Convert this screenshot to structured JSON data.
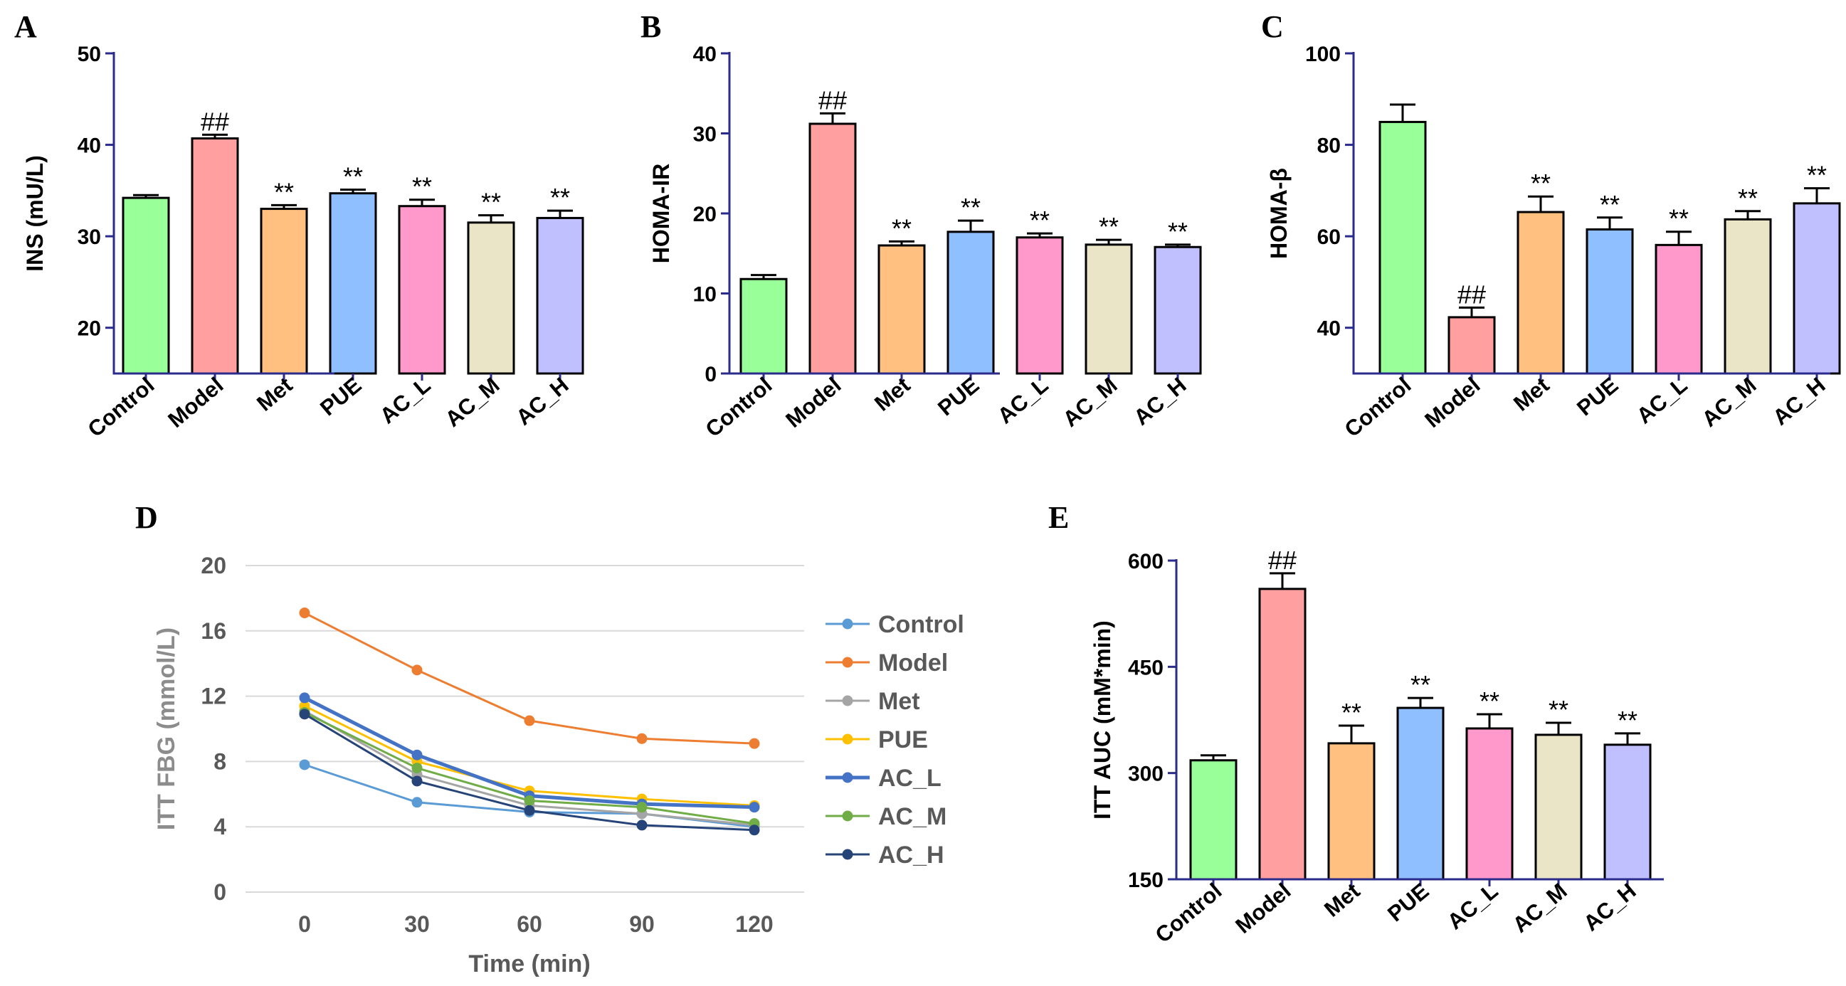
{
  "colors": {
    "axis": "#2b2b8c",
    "bars": [
      "#99ff99",
      "#ff9f9f",
      "#ffc080",
      "#8fbfff",
      "#ff99cc",
      "#ebe5c8",
      "#c0bfff"
    ],
    "lines": [
      "#5b9bd5",
      "#ed7d31",
      "#a5a5a5",
      "#ffc000",
      "#4472c4",
      "#70ad47",
      "#264478"
    ],
    "grid": "#d9d9d9"
  },
  "chart_data": [
    {
      "panel": "A",
      "type": "bar",
      "ylabel": "INS (mU/L)",
      "ylim": [
        15,
        50
      ],
      "yticks": [
        20,
        30,
        40,
        50
      ],
      "categories": [
        "Control",
        "Model",
        "Met",
        "PUE",
        "AC_L",
        "AC_M",
        "AC_H"
      ],
      "values": [
        34.2,
        40.7,
        33.0,
        34.7,
        33.3,
        31.5,
        32.0
      ],
      "errors": [
        0.3,
        0.4,
        0.4,
        0.4,
        0.7,
        0.8,
        0.8
      ],
      "annotations": [
        "",
        "##",
        "**",
        "**",
        "**",
        "**",
        "**"
      ]
    },
    {
      "panel": "B",
      "type": "bar",
      "ylabel": "HOMA-IR",
      "ylim": [
        0,
        40
      ],
      "yticks": [
        0,
        10,
        20,
        30,
        40
      ],
      "categories": [
        "Control",
        "Model",
        "Met",
        "PUE",
        "AC_L",
        "AC_M",
        "AC_H"
      ],
      "values": [
        11.8,
        31.2,
        16.0,
        17.7,
        17.0,
        16.1,
        15.8
      ],
      "errors": [
        0.5,
        1.3,
        0.5,
        1.4,
        0.5,
        0.6,
        0.3
      ],
      "annotations": [
        "",
        "##",
        "**",
        "**",
        "**",
        "**",
        "**"
      ]
    },
    {
      "panel": "C",
      "type": "bar",
      "ylabel": "HOMA-β",
      "ylim": [
        30,
        100
      ],
      "yticks": [
        40,
        60,
        80,
        100
      ],
      "categories": [
        "Control",
        "Model",
        "Met",
        "PUE",
        "AC_L",
        "AC_M",
        "AC_H"
      ],
      "values": [
        85.0,
        42.3,
        65.3,
        61.5,
        58.1,
        63.7,
        67.2
      ],
      "errors": [
        3.8,
        2.1,
        3.4,
        2.6,
        2.9,
        1.8,
        3.3
      ],
      "annotations": [
        "",
        "##",
        "**",
        "**",
        "**",
        "**",
        "**"
      ]
    },
    {
      "panel": "D",
      "type": "line",
      "ylabel": "ITT  FBG (mmol/L)",
      "xlabel": "Time (min)",
      "x": [
        0,
        30,
        60,
        90,
        120
      ],
      "ylim": [
        0,
        20
      ],
      "yticks": [
        0,
        4,
        8,
        12,
        16,
        20
      ],
      "legend_position": "right",
      "series": [
        {
          "name": "Control",
          "values": [
            7.8,
            5.5,
            4.9,
            4.8,
            4.0
          ]
        },
        {
          "name": "Model",
          "values": [
            17.1,
            13.6,
            10.5,
            9.4,
            9.1
          ]
        },
        {
          "name": "Met",
          "values": [
            11.1,
            7.2,
            5.3,
            4.8,
            4.1
          ]
        },
        {
          "name": "PUE",
          "values": [
            11.4,
            8.0,
            6.2,
            5.7,
            5.3
          ]
        },
        {
          "name": "AC_L",
          "values": [
            11.9,
            8.4,
            5.9,
            5.4,
            5.2
          ]
        },
        {
          "name": "AC_M",
          "values": [
            11.0,
            7.6,
            5.6,
            5.2,
            4.2
          ]
        },
        {
          "name": "AC_H",
          "values": [
            10.9,
            6.8,
            5.0,
            4.1,
            3.8
          ]
        }
      ]
    },
    {
      "panel": "E",
      "type": "bar",
      "ylabel": "ITT AUC (mM*min)",
      "ylim": [
        150,
        600
      ],
      "yticks": [
        150,
        300,
        450,
        600
      ],
      "categories": [
        "Control",
        "Model",
        "Met",
        "PUE",
        "AC_L",
        "AC_M",
        "AC_H"
      ],
      "values": [
        318,
        560,
        342,
        392,
        363,
        354,
        340
      ],
      "errors": [
        7,
        22,
        25,
        14,
        20,
        17,
        16
      ],
      "annotations": [
        "",
        "##",
        "**",
        "**",
        "**",
        "**",
        "**"
      ]
    }
  ]
}
